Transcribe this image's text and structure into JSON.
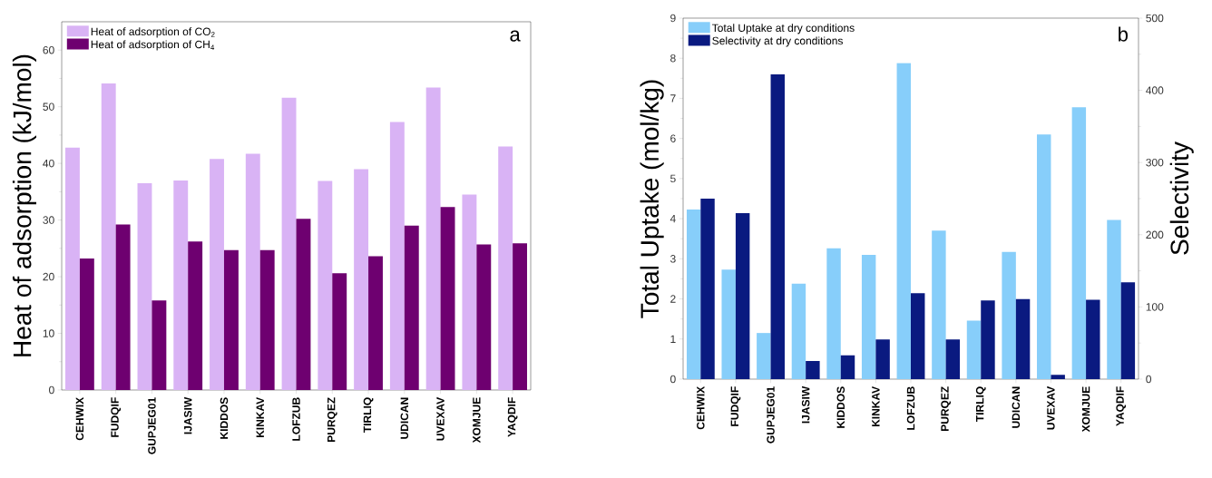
{
  "chart_data": [
    {
      "type": "bar",
      "ylabel": "Heat of adsorption (kJ/mol)",
      "annotations": [
        "a"
      ],
      "categories": [
        "CEHWIX",
        "FUDQIF",
        "GUPJEG01",
        "IJASIW",
        "KIDDOS",
        "KINKAV",
        "LOFZUB",
        "PURQEZ",
        "TIRLIQ",
        "UDICAN",
        "UVEXAV",
        "XOMJUE",
        "YAQDIF"
      ],
      "series": [
        {
          "name": "Heat of adsorption of CO$_{2}$",
          "color": "#d9b3f5",
          "values": [
            42.8,
            54.1,
            36.5,
            37.0,
            40.8,
            41.7,
            51.6,
            36.9,
            39.0,
            47.3,
            53.4,
            34.5,
            43.0
          ]
        },
        {
          "name": "Heat of adsorption of CH$_{4}$",
          "color": "#6e0070",
          "values": [
            23.2,
            29.2,
            15.8,
            26.2,
            24.7,
            24.7,
            30.2,
            20.6,
            23.6,
            29.0,
            32.3,
            25.7,
            25.9
          ]
        }
      ],
      "ylim": [
        0,
        65
      ],
      "yticks": [
        0,
        10,
        20,
        30,
        40,
        50,
        60
      ],
      "legend": "top left"
    },
    {
      "type": "bar",
      "ylabel": "Total Uptake (mol/kg)",
      "y2label": "Selectivity",
      "annotations": [
        "b"
      ],
      "categories": [
        "CEHWIX",
        "FUDQIF",
        "GUPJEG01",
        "IJASIW",
        "KIDDOS",
        "KINKAV",
        "LOFZUB",
        "PURQEZ",
        "TIRLIQ",
        "UDICAN",
        "UVEXAV",
        "XOMJUE",
        "YAQDIF"
      ],
      "series": [
        {
          "name": "Total Uptake at dry conditions",
          "color": "#87cefa",
          "values": [
            4.23,
            2.73,
            1.15,
            2.38,
            3.26,
            3.1,
            7.88,
            3.7,
            1.46,
            3.17,
            6.1,
            6.78,
            3.97
          ]
        },
        {
          "name": "Selectivity at dry conditions",
          "color": "#0a1a80",
          "axis": "y2",
          "values": [
            250,
            230,
            422,
            25,
            33,
            55,
            119,
            55,
            109,
            111,
            6,
            110,
            134
          ]
        }
      ],
      "ylim": [
        0,
        9
      ],
      "yticks": [
        0,
        1,
        2,
        3,
        4,
        5,
        6,
        7,
        8,
        9
      ],
      "y2lim": [
        0,
        500
      ],
      "y2ticks": [
        0,
        100,
        200,
        300,
        400,
        500
      ],
      "legend": "top left"
    }
  ]
}
